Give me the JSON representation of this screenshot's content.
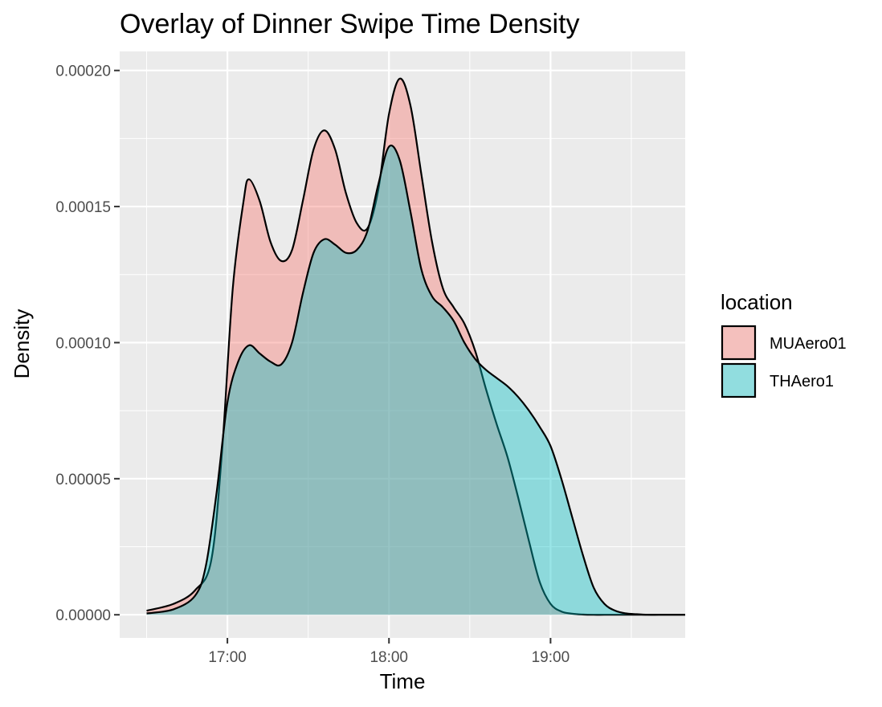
{
  "chart_data": {
    "type": "area",
    "title": "Overlay of Dinner Swipe Time Density",
    "xlabel": "Time",
    "ylabel": "Density",
    "x_unit": "HH:MM",
    "xlim": [
      "16:20",
      "19:50"
    ],
    "ylim": [
      -8.5e-06,
      0.000207
    ],
    "x_ticks": [
      "17:00",
      "18:00",
      "19:00"
    ],
    "y_ticks": [
      0,
      5e-05,
      0.0001,
      0.00015,
      0.0002
    ],
    "y_tick_labels": [
      "0.00000",
      "0.00005",
      "0.00010",
      "0.00015",
      "0.00020"
    ],
    "grid": true,
    "legend": {
      "title": "location",
      "position": "right"
    },
    "series": [
      {
        "name": "MUAero01",
        "color": "#F8766D",
        "x": [
          "16:30",
          "16:40",
          "16:48",
          "16:54",
          "16:58",
          "17:02",
          "17:06",
          "17:08",
          "17:12",
          "17:16",
          "17:20",
          "17:24",
          "17:28",
          "17:32",
          "17:36",
          "17:40",
          "17:44",
          "17:48",
          "17:52",
          "17:56",
          "18:00",
          "18:04",
          "18:08",
          "18:12",
          "18:16",
          "18:20",
          "18:24",
          "18:28",
          "18:32",
          "18:36",
          "18:40",
          "18:44",
          "18:48",
          "18:52",
          "18:56",
          "19:00",
          "19:04",
          "19:08",
          "19:12",
          "19:16",
          "19:20",
          "19:28",
          "19:36",
          "19:44",
          "19:50"
        ],
        "values": [
          1.5e-06,
          4e-06,
          9e-06,
          2e-05,
          6e-05,
          0.00012,
          0.000152,
          0.00016,
          0.000152,
          0.000137,
          0.00013,
          0.000134,
          0.000152,
          0.000171,
          0.000178,
          0.000171,
          0.000155,
          0.000144,
          0.000142,
          0.000156,
          0.000184,
          0.000197,
          0.000187,
          0.000162,
          0.000137,
          0.00012,
          0.000113,
          0.000107,
          9.7e-05,
          8.3e-05,
          7e-05,
          5.8e-05,
          4.3e-05,
          2.7e-05,
          1.2e-05,
          4e-06,
          1.2e-06,
          4e-07,
          1e-07,
          0,
          0,
          0,
          0,
          0,
          0
        ]
      },
      {
        "name": "THAero1",
        "color": "#00BFC4",
        "x": [
          "16:30",
          "16:40",
          "16:48",
          "16:52",
          "16:56",
          "17:00",
          "17:04",
          "17:08",
          "17:12",
          "17:16",
          "17:20",
          "17:24",
          "17:28",
          "17:32",
          "17:36",
          "17:40",
          "17:44",
          "17:48",
          "17:52",
          "17:56",
          "18:00",
          "18:04",
          "18:08",
          "18:12",
          "18:16",
          "18:20",
          "18:24",
          "18:28",
          "18:32",
          "18:36",
          "18:40",
          "18:44",
          "18:48",
          "18:52",
          "18:56",
          "19:00",
          "19:04",
          "19:08",
          "19:12",
          "19:16",
          "19:20",
          "19:24",
          "19:28",
          "19:32",
          "19:36",
          "19:40",
          "19:44",
          "19:50"
        ],
        "values": [
          5e-07,
          2e-06,
          7e-06,
          1.8e-05,
          4.5e-05,
          7.8e-05,
          9.3e-05,
          9.9e-05,
          9.6e-05,
          9.3e-05,
          9.2e-05,
          0.0001,
          0.000118,
          0.000133,
          0.000138,
          0.000136,
          0.000133,
          0.000134,
          0.000141,
          0.000158,
          0.000172,
          0.000167,
          0.000148,
          0.000127,
          0.000117,
          0.000113,
          0.000108,
          0.0001,
          9.4e-05,
          9e-05,
          8.7e-05,
          8.4e-05,
          8e-05,
          7.5e-05,
          6.9e-05,
          6.2e-05,
          5e-05,
          3.6e-05,
          2.2e-05,
          1e-05,
          4e-06,
          1.5e-06,
          5e-07,
          2e-07,
          0,
          0,
          0,
          0
        ]
      }
    ]
  }
}
